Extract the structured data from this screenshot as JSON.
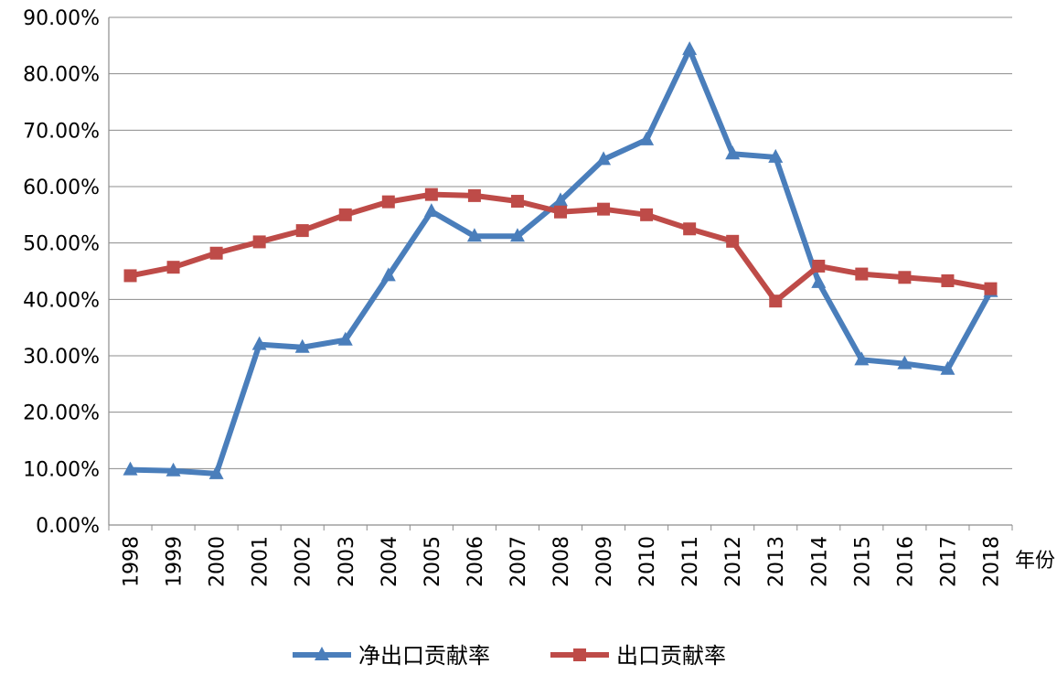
{
  "chart_data": {
    "type": "line",
    "categories": [
      "1998",
      "1999",
      "2000",
      "2001",
      "2002",
      "2003",
      "2004",
      "2005",
      "2006",
      "2007",
      "2008",
      "2009",
      "2010",
      "2011",
      "2012",
      "2013",
      "2014",
      "2015",
      "2016",
      "2017",
      "2018"
    ],
    "x_unit_label": "年份",
    "y_ticks": [
      "0.00%",
      "10.00%",
      "20.00%",
      "30.00%",
      "40.00%",
      "50.00%",
      "60.00%",
      "70.00%",
      "80.00%",
      "90.00%"
    ],
    "ylim": [
      0,
      90
    ],
    "grid": true,
    "legend_position": "bottom",
    "series": [
      {
        "name": "净出口贡献率",
        "color": "#4a7ebb",
        "marker": "triangle",
        "values": [
          9.8,
          9.6,
          9.1,
          32.0,
          31.5,
          32.8,
          44.2,
          55.6,
          51.2,
          51.2,
          57.5,
          64.8,
          68.3,
          84.3,
          65.8,
          65.2,
          43.0,
          29.3,
          28.6,
          27.6,
          41.4
        ]
      },
      {
        "name": "出口贡献率",
        "color": "#be4b48",
        "marker": "square",
        "values": [
          44.2,
          45.7,
          48.2,
          50.2,
          52.2,
          55.0,
          57.3,
          58.6,
          58.4,
          57.4,
          55.5,
          56.0,
          55.0,
          52.5,
          50.3,
          39.7,
          45.9,
          44.5,
          43.9,
          43.3,
          41.9
        ]
      }
    ]
  }
}
